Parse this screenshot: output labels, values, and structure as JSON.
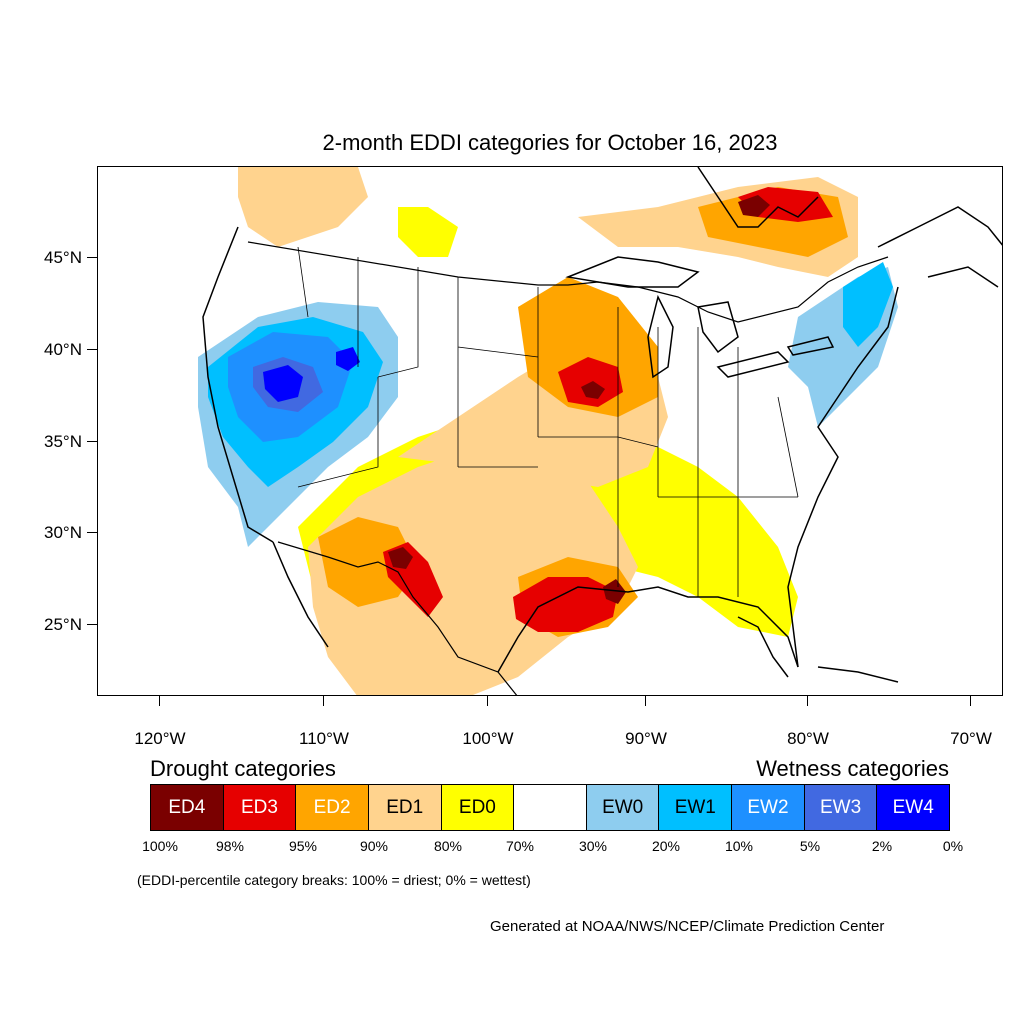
{
  "title": "2-month EDDI categories for October 16, 2023",
  "lat_labels": [
    "45°N",
    "40°N",
    "35°N",
    "30°N",
    "25°N"
  ],
  "lon_labels": [
    "120°W",
    "110°W",
    "100°W",
    "90°W",
    "80°W",
    "70°W"
  ],
  "legend": {
    "drought_title": "Drought categories",
    "wetness_title": "Wetness categories",
    "categories": [
      {
        "label": "ED4",
        "color": "#7a0000",
        "text_color": "#ffffff"
      },
      {
        "label": "ED3",
        "color": "#e60000",
        "text_color": "#ffffff"
      },
      {
        "label": "ED2",
        "color": "#ffa500",
        "text_color": "#ffffff"
      },
      {
        "label": "ED1",
        "color": "#ffd38e",
        "text_color": "#000000"
      },
      {
        "label": "ED0",
        "color": "#ffff00",
        "text_color": "#000000"
      },
      {
        "label": "",
        "color": "#ffffff",
        "text_color": "#000000"
      },
      {
        "label": "EW0",
        "color": "#8ecdef",
        "text_color": "#000000"
      },
      {
        "label": "EW1",
        "color": "#00bfff",
        "text_color": "#000000"
      },
      {
        "label": "EW2",
        "color": "#1e90ff",
        "text_color": "#ffffff"
      },
      {
        "label": "EW3",
        "color": "#4169e1",
        "text_color": "#ffffff"
      },
      {
        "label": "EW4",
        "color": "#0000ff",
        "text_color": "#ffffff"
      }
    ],
    "breaks": [
      "100%",
      "98%",
      "95%",
      "90%",
      "80%",
      "70%",
      "30%",
      "20%",
      "10%",
      "5%",
      "2%",
      "0%"
    ]
  },
  "note": "(EDDI-percentile category breaks: 100% = driest; 0% = wettest)",
  "credit": "Generated at NOAA/NWS/NCEP/Climate Prediction Center"
}
